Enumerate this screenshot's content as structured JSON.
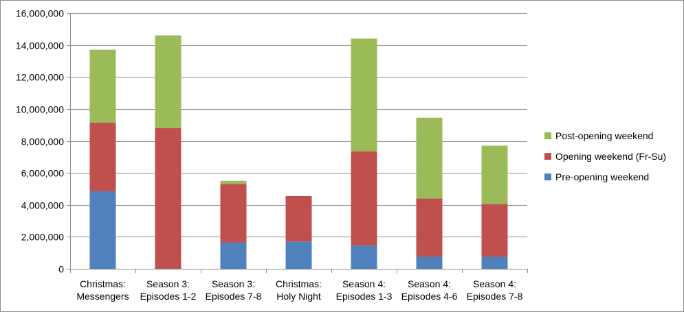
{
  "chart_data": {
    "type": "bar",
    "stacked": true,
    "title": "",
    "xlabel": "",
    "ylabel": "",
    "ylim": [
      0,
      16000000
    ],
    "y_ticks": [
      0,
      2000000,
      4000000,
      6000000,
      8000000,
      10000000,
      12000000,
      14000000,
      16000000
    ],
    "y_tick_labels": [
      "0",
      "2,000,000",
      "4,000,000",
      "6,000,000",
      "8,000,000",
      "10,000,000",
      "12,000,000",
      "14,000,000",
      "16,000,000"
    ],
    "grid": true,
    "legend_position": "right",
    "categories": [
      [
        "Christmas:",
        "Messengers"
      ],
      [
        "Season 3:",
        "Episodes 1-2"
      ],
      [
        "Season 3:",
        "Episodes 7-8"
      ],
      [
        "Christmas:",
        "Holy Night"
      ],
      [
        "Season 4:",
        "Episodes 1-3"
      ],
      [
        "Season 4:",
        "Episodes 4-6"
      ],
      [
        "Season 4:",
        "Episodes 7-8"
      ]
    ],
    "series": [
      {
        "name": "Pre-opening weekend",
        "color": "#4f81bd",
        "values": [
          4850000,
          0,
          1650000,
          1700000,
          1450000,
          750000,
          750000
        ]
      },
      {
        "name": "Opening weekend (Fr-Su)",
        "color": "#c0504d",
        "values": [
          4300000,
          8800000,
          3650000,
          2850000,
          5900000,
          3650000,
          3300000
        ]
      },
      {
        "name": "Post-opening weekend",
        "color": "#9bbb59",
        "values": [
          4550000,
          5800000,
          200000,
          0,
          7050000,
          5050000,
          3650000
        ]
      }
    ],
    "legend_order": [
      "Post-opening weekend",
      "Opening weekend (Fr-Su)",
      "Pre-opening weekend"
    ]
  }
}
